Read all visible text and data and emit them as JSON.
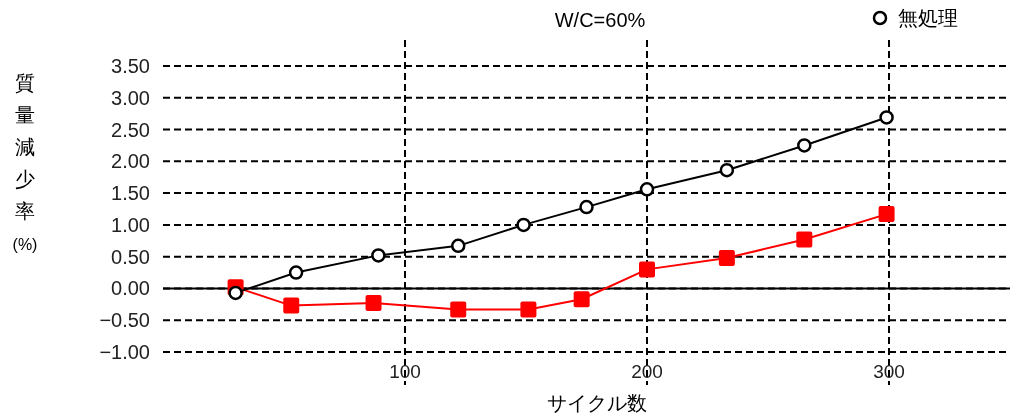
{
  "chart_data": {
    "type": "line",
    "title": "W/C=60%",
    "xlabel": "サイクル数",
    "ylabel": "質量減少率(%)",
    "xlim": [
      0,
      350
    ],
    "ylim": [
      -1,
      3.5
    ],
    "xticks": [
      100,
      200,
      300
    ],
    "yticks": [
      {
        "value": -1,
        "label": "−1.00"
      },
      {
        "value": -0.5,
        "label": "−0.50"
      },
      {
        "value": 0,
        "label": "0.00"
      },
      {
        "value": 0.5,
        "label": "0.50"
      },
      {
        "value": 1,
        "label": "1.00"
      },
      {
        "value": 1.5,
        "label": "1.50"
      },
      {
        "value": 2,
        "label": "2.00"
      },
      {
        "value": 2.5,
        "label": "2.50"
      },
      {
        "value": 3,
        "label": "3.00"
      },
      {
        "value": 3.5,
        "label": "3.50"
      }
    ],
    "grid": true,
    "legend": "top right",
    "ref_lines": [
      {
        "axis": "y",
        "value": 0,
        "color": "#000000",
        "line_style": "solid"
      }
    ],
    "series": [
      {
        "name": "無処理",
        "color": "#000000",
        "marker": "circle",
        "x": [
          30,
          55,
          89,
          122,
          149,
          175,
          200,
          233,
          265,
          299
        ],
        "values": [
          -0.07,
          0.25,
          0.52,
          0.67,
          1.0,
          1.28,
          1.56,
          1.86,
          2.25,
          2.69
        ]
      },
      {
        "color": "#ff0000",
        "marker": "square",
        "x": [
          30,
          53,
          87,
          122,
          151,
          173,
          200,
          233,
          265,
          299
        ],
        "values": [
          0.02,
          -0.27,
          -0.23,
          -0.33,
          -0.33,
          -0.17,
          0.3,
          0.48,
          0.77,
          1.17
        ]
      }
    ]
  }
}
